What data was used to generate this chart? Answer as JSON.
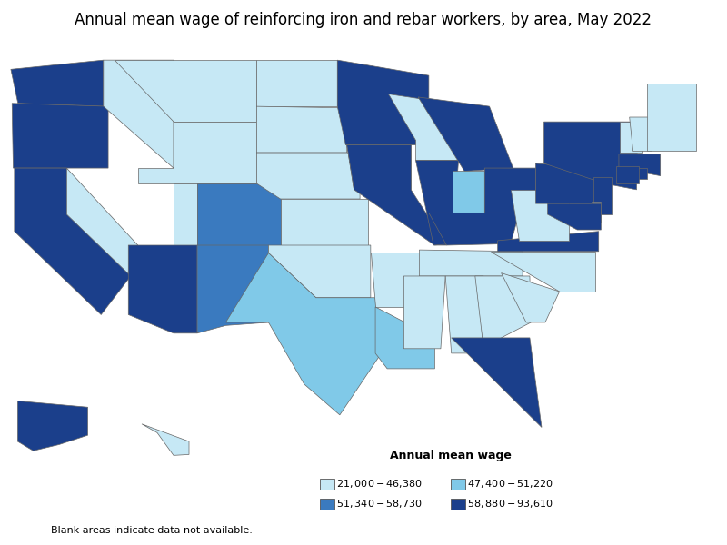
{
  "title": "Annual mean wage of reinforcing iron and rebar workers, by area, May 2022",
  "legend_title": "Annual mean wage",
  "legend_labels": [
    "$21,000 - $46,380",
    "$51,340 - $58,730",
    "$47,400 - $51,220",
    "$58,880 - $93,610"
  ],
  "cat_colors": {
    "1": "#c6e8f5",
    "2": "#80c9e8",
    "3": "#3a7abf",
    "4": "#1b3f8b",
    "0": "#ffffff"
  },
  "blank_note": "Blank areas indicate data not available.",
  "title_fontsize": 12,
  "area_wages": {
    "Washington": 85000,
    "Oregon": 62000,
    "California": 75000,
    "Nevada": 44000,
    "Idaho": 44000,
    "Montana": 44000,
    "Wyoming": 44000,
    "Utah": 44000,
    "Arizona": 90000,
    "Colorado": 55000,
    "New Mexico": 55000,
    "North Dakota": 44000,
    "South Dakota": 44000,
    "Nebraska": 44000,
    "Kansas": 44000,
    "Oklahoma": 44000,
    "Texas": 50000,
    "Minnesota": 65000,
    "Iowa": 44000,
    "Missouri": 65000,
    "Arkansas": 44000,
    "Louisiana": 50000,
    "Wisconsin": 44000,
    "Illinois": 85000,
    "Michigan": 75000,
    "Indiana": 50000,
    "Ohio": 65000,
    "Kentucky": 65000,
    "Tennessee": 44000,
    "Mississippi": 44000,
    "Alabama": 44000,
    "Georgia": 44000,
    "Florida": 60000,
    "South Carolina": 44000,
    "North Carolina": 44000,
    "Virginia": 85000,
    "West Virginia": 44000,
    "Pennsylvania": 80000,
    "New York": 90000,
    "Vermont": 44000,
    "New Hampshire": 44000,
    "Maine": 44000,
    "Massachusetts": 70000,
    "Rhode Island": 65000,
    "Connecticut": 70000,
    "New Jersey": 75000,
    "Delaware": 44000,
    "Maryland": 75000,
    "Alaska": 70000,
    "Hawaii": 44000
  }
}
